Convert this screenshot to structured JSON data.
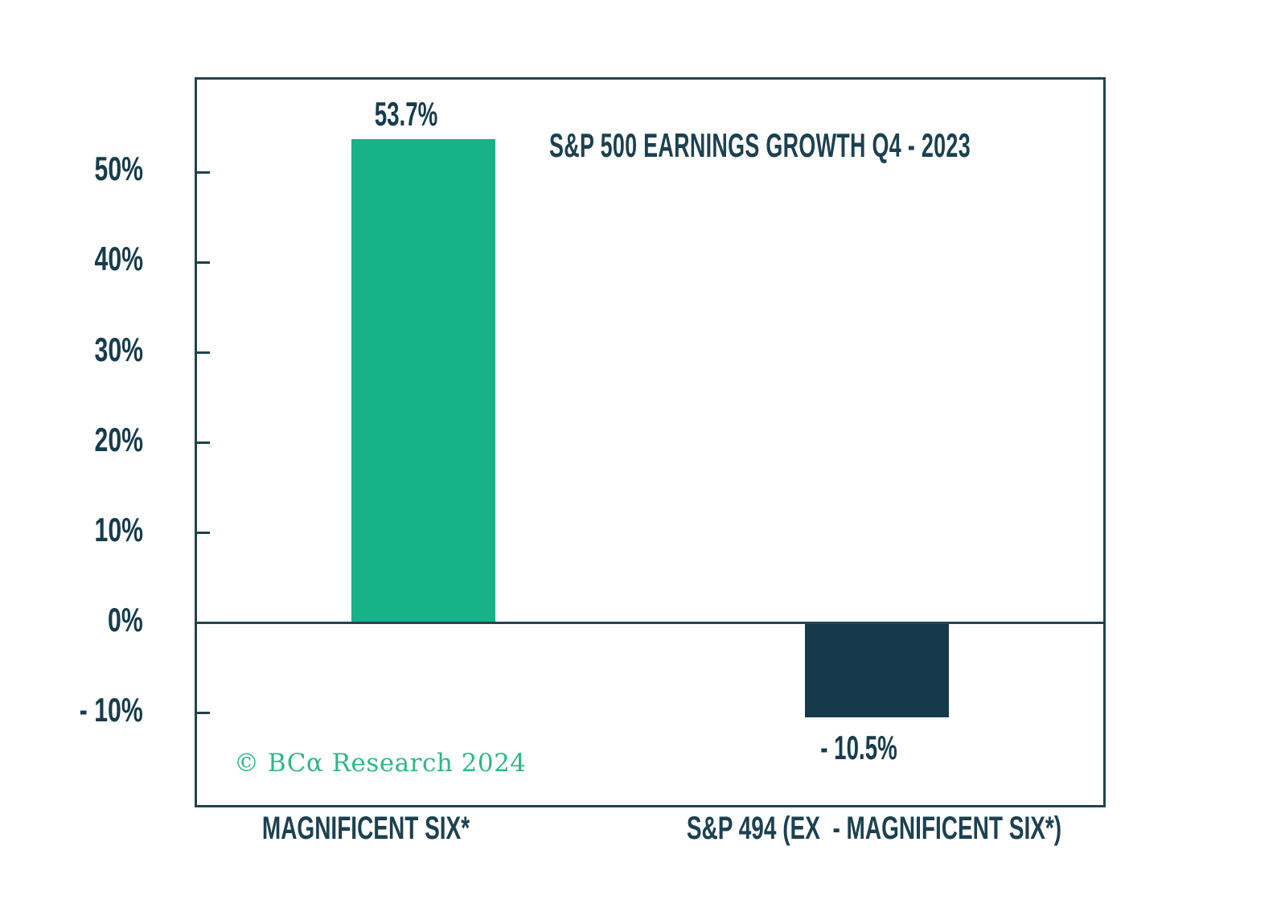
{
  "chart_data": {
    "type": "bar",
    "title": "S&P 500 EARNINGS GROWTH Q4 - 2023",
    "categories": [
      "MAGNIFICENT SIX*",
      "S&P 494 (EX  - MAGNIFICENT SIX*)"
    ],
    "values": [
      53.7,
      -10.5
    ],
    "value_labels": [
      "53.7%",
      "- 10.5%"
    ],
    "bar_colors": [
      "#17b287",
      "#143a4a"
    ],
    "xlabel": "",
    "ylabel": "",
    "ylim": [
      -20.2,
      60.3
    ],
    "yticks": [
      {
        "value": 50,
        "label": "50%"
      },
      {
        "value": 40,
        "label": "40%"
      },
      {
        "value": 30,
        "label": "30%"
      },
      {
        "value": 20,
        "label": "20%"
      },
      {
        "value": 10,
        "label": "10%"
      },
      {
        "value": 0,
        "label": "0%"
      },
      {
        "value": -10,
        "label": "- 10%"
      }
    ],
    "grid": false,
    "legend": null,
    "zero_line": true,
    "bar_width_fraction": 0.159
  },
  "branding": {
    "copyright": "© BCα Research 2024",
    "copyright_color": "#2eb78a"
  },
  "colors": {
    "background": "#ffffff",
    "frame": "#23424e",
    "zero_line": "#27454f",
    "text_dark": "#1c4150",
    "positive_bar": "#17b287",
    "negative_bar": "#143a4a"
  }
}
